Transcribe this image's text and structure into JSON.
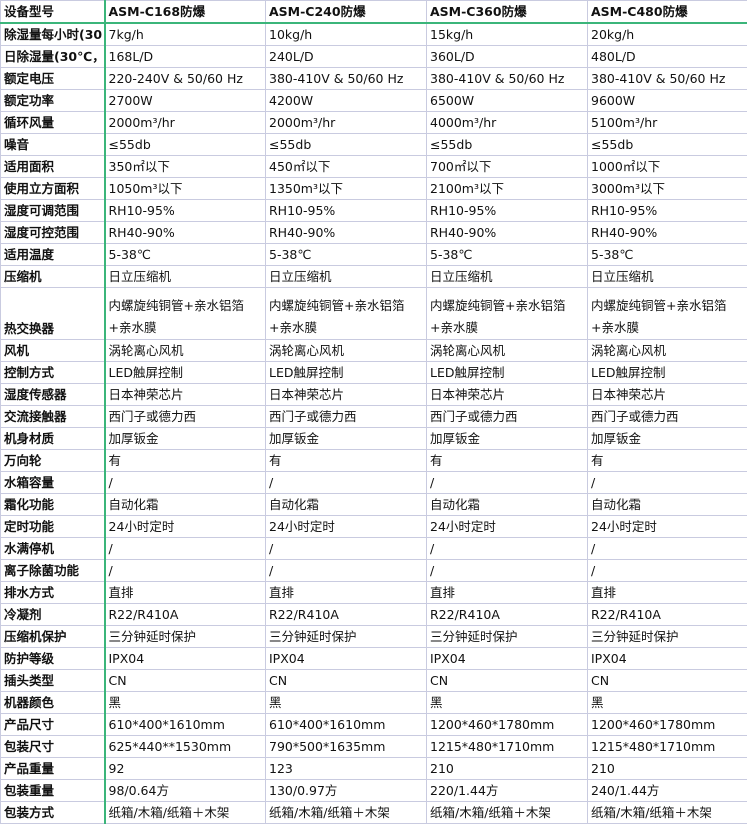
{
  "header": {
    "label": "设备型号",
    "models": [
      "ASM-C168防爆",
      "ASM-C240防爆",
      "ASM-C360防爆",
      "ASM-C480防爆"
    ]
  },
  "rows": [
    {
      "label": "除湿量每小时(30",
      "values": [
        "7kg/h",
        "10kg/h",
        "15kg/h",
        "20kg/h"
      ]
    },
    {
      "label": "日除湿量(30℃，",
      "values": [
        "168L/D",
        "240L/D",
        "360L/D",
        "480L/D"
      ]
    },
    {
      "label": "额定电压",
      "values": [
        "220-240V & 50/60 Hz",
        "380-410V & 50/60 Hz",
        "380-410V & 50/60 Hz",
        "380-410V & 50/60 Hz"
      ]
    },
    {
      "label": "额定功率",
      "values": [
        "2700W",
        "4200W",
        "6500W",
        "9600W"
      ]
    },
    {
      "label": "循环风量",
      "values": [
        "2000m³/hr",
        "2000m³/hr",
        "4000m³/hr",
        "5100m³/hr"
      ]
    },
    {
      "label": "噪音",
      "values": [
        "≤55db",
        "≤55db",
        "≤55db",
        "≤55db"
      ]
    },
    {
      "label": "适用面积",
      "values": [
        "350㎡以下",
        "450㎡以下",
        "700㎡以下",
        "1000㎡以下"
      ]
    },
    {
      "label": "使用立方面积",
      "values": [
        "1050m³以下",
        "1350m³以下",
        "2100m³以下",
        "3000m³以下"
      ]
    },
    {
      "label": "湿度可调范围",
      "values": [
        "RH10-95%",
        "RH10-95%",
        "RH10-95%",
        "RH10-95%"
      ]
    },
    {
      "label": "湿度可控范围",
      "values": [
        "RH40-90%",
        "RH40-90%",
        "RH40-90%",
        "RH40-90%"
      ]
    },
    {
      "label": "适用温度",
      "values": [
        "5-38℃",
        "5-38℃",
        "5-38℃",
        "5-38℃"
      ]
    },
    {
      "label": "压缩机",
      "values": [
        "日立压缩机",
        "日立压缩机",
        "日立压缩机",
        "日立压缩机"
      ]
    },
    {
      "label": "热交换器",
      "tall": true,
      "values": [
        "内螺旋纯铜管+亲水铝箔+亲水膜",
        "内螺旋纯铜管+亲水铝箔+亲水膜",
        "内螺旋纯铜管+亲水铝箔+亲水膜",
        "内螺旋纯铜管+亲水铝箔+亲水膜"
      ]
    },
    {
      "label": "风机",
      "values": [
        "涡轮离心风机",
        "涡轮离心风机",
        "涡轮离心风机",
        "涡轮离心风机"
      ]
    },
    {
      "label": "控制方式",
      "values": [
        "LED触屏控制",
        "LED触屏控制",
        "LED触屏控制",
        "LED触屏控制"
      ]
    },
    {
      "label": "湿度传感器",
      "values": [
        "日本神荣芯片",
        "日本神荣芯片",
        "日本神荣芯片",
        "日本神荣芯片"
      ]
    },
    {
      "label": "交流接触器",
      "values": [
        "西门子或德力西",
        "西门子或德力西",
        "西门子或德力西",
        "西门子或德力西"
      ]
    },
    {
      "label": "机身材质",
      "values": [
        "加厚钣金",
        "加厚钣金",
        "加厚钣金",
        "加厚钣金"
      ]
    },
    {
      "label": "万向轮",
      "values": [
        "有",
        "有",
        "有",
        "有"
      ]
    },
    {
      "label": "水箱容量",
      "values": [
        "/",
        "/",
        "/",
        "/"
      ]
    },
    {
      "label": "霜化功能",
      "values": [
        "自动化霜",
        "自动化霜",
        "自动化霜",
        "自动化霜"
      ]
    },
    {
      "label": "定时功能",
      "values": [
        "24小时定时",
        "24小时定时",
        "24小时定时",
        "24小时定时"
      ]
    },
    {
      "label": "水满停机",
      "values": [
        "/",
        "/",
        "/",
        "/"
      ]
    },
    {
      "label": "离子除菌功能",
      "values": [
        "/",
        "/",
        "/",
        "/"
      ]
    },
    {
      "label": "排水方式",
      "values": [
        "直排",
        "直排",
        "直排",
        "直排"
      ]
    },
    {
      "label": "冷凝剂",
      "values": [
        "R22/R410A",
        "R22/R410A",
        "R22/R410A",
        "R22/R410A"
      ]
    },
    {
      "label": "压缩机保护",
      "values": [
        "三分钟延时保护",
        "三分钟延时保护",
        "三分钟延时保护",
        "三分钟延时保护"
      ]
    },
    {
      "label": "防护等级",
      "values": [
        "IPX04",
        "IPX04",
        "IPX04",
        "IPX04"
      ]
    },
    {
      "label": "插头类型",
      "values": [
        "CN",
        "CN",
        "CN",
        "CN"
      ]
    },
    {
      "label": "机器颜色",
      "values": [
        "黑",
        "黑",
        "黑",
        "黑"
      ]
    },
    {
      "label": "产品尺寸",
      "values": [
        "610*400*1610mm",
        "610*400*1610mm",
        "1200*460*1780mm",
        "1200*460*1780mm"
      ]
    },
    {
      "label": "包装尺寸",
      "values": [
        "625*440**1530mm",
        "790*500*1635mm",
        "1215*480*1710mm",
        "1215*480*1710mm"
      ]
    },
    {
      "label": "产品重量",
      "values": [
        "92",
        "123",
        "210",
        "210"
      ]
    },
    {
      "label": "包装重量",
      "values": [
        "98/0.64方",
        "130/0.97方",
        "220/1.44方",
        "240/1.44方"
      ]
    },
    {
      "label": "包装方式",
      "values": [
        "纸箱/木箱/纸箱＋木架",
        "纸箱/木箱/纸箱＋木架",
        "纸箱/木箱/纸箱＋木架",
        "纸箱/木箱/纸箱＋木架"
      ]
    }
  ]
}
